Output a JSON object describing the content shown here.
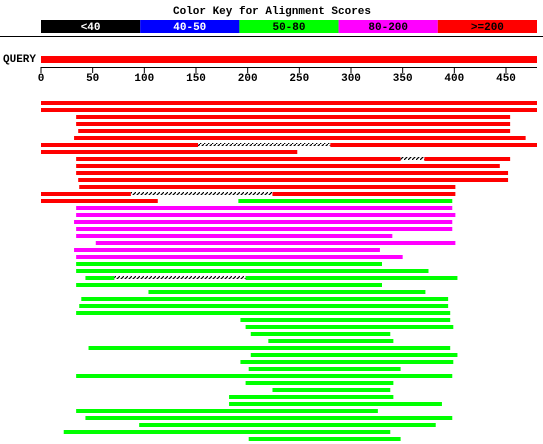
{
  "chart_data": {
    "type": "alignment",
    "title": "Color Key for Alignment Scores",
    "color_key": [
      {
        "label": "<40",
        "color": "#000000"
      },
      {
        "label": "40-50",
        "color": "#0000ff"
      },
      {
        "label": "50-80",
        "color": "#00ff00"
      },
      {
        "label": "80-200",
        "color": "#ff00ff"
      },
      {
        "label": ">=200",
        "color": "#ff0000"
      }
    ],
    "query": {
      "label": "QUERY",
      "start": 0,
      "end": 480,
      "key": 4
    },
    "xlim": [
      0,
      480
    ],
    "xticks": [
      0,
      50,
      100,
      150,
      200,
      250,
      300,
      350,
      400,
      450
    ],
    "hits": [
      [
        {
          "start": 0,
          "end": 480,
          "key": 4
        }
      ],
      [
        {
          "start": 0,
          "end": 480,
          "key": 4
        }
      ],
      [
        {
          "start": 34,
          "end": 454,
          "key": 4
        }
      ],
      [
        {
          "start": 34,
          "end": 454,
          "key": 4
        }
      ],
      [
        {
          "start": 36,
          "end": 454,
          "key": 4
        }
      ],
      [
        {
          "start": 32,
          "end": 469,
          "key": 4
        }
      ],
      [
        {
          "start": 0,
          "end": 152,
          "key": 4
        },
        {
          "start": 152,
          "end": 280,
          "key": null
        },
        {
          "start": 280,
          "end": 480,
          "key": 4
        }
      ],
      [
        {
          "start": 0,
          "end": 248,
          "key": 4
        }
      ],
      [
        {
          "start": 34,
          "end": 348,
          "key": 4
        },
        {
          "start": 348,
          "end": 371,
          "key": null
        },
        {
          "start": 371,
          "end": 454,
          "key": 4
        }
      ],
      [
        {
          "start": 34,
          "end": 444,
          "key": 4
        }
      ],
      [
        {
          "start": 34,
          "end": 452,
          "key": 4
        }
      ],
      [
        {
          "start": 36,
          "end": 452,
          "key": 4
        }
      ],
      [
        {
          "start": 37,
          "end": 401,
          "key": 4
        }
      ],
      [
        {
          "start": 0,
          "end": 87,
          "key": 4
        },
        {
          "start": 87,
          "end": 224,
          "key": null
        },
        {
          "start": 224,
          "end": 401,
          "key": 4
        }
      ],
      [
        {
          "start": 0,
          "end": 113,
          "key": 4
        },
        {
          "start": 191,
          "end": 398,
          "key": 2
        }
      ],
      [
        {
          "start": 34,
          "end": 398,
          "key": 3
        }
      ],
      [
        {
          "start": 34,
          "end": 401,
          "key": 3
        }
      ],
      [
        {
          "start": 32,
          "end": 398,
          "key": 3
        }
      ],
      [
        {
          "start": 34,
          "end": 398,
          "key": 3
        }
      ],
      [
        {
          "start": 34,
          "end": 340,
          "key": 3
        }
      ],
      [
        {
          "start": 53,
          "end": 401,
          "key": 3
        }
      ],
      [
        {
          "start": 32,
          "end": 328,
          "key": 3
        }
      ],
      [
        {
          "start": 34,
          "end": 350,
          "key": 3
        }
      ],
      [
        {
          "start": 34,
          "end": 330,
          "key": 2
        }
      ],
      [
        {
          "start": 34,
          "end": 375,
          "key": 2
        }
      ],
      [
        {
          "start": 43,
          "end": 71,
          "key": 2
        },
        {
          "start": 71,
          "end": 198,
          "key": null
        },
        {
          "start": 198,
          "end": 403,
          "key": 2
        }
      ],
      [
        {
          "start": 34,
          "end": 330,
          "key": 2
        }
      ],
      [
        {
          "start": 104,
          "end": 372,
          "key": 2
        }
      ],
      [
        {
          "start": 39,
          "end": 394,
          "key": 2
        }
      ],
      [
        {
          "start": 37,
          "end": 394,
          "key": 2
        }
      ],
      [
        {
          "start": 34,
          "end": 396,
          "key": 2
        }
      ],
      [
        {
          "start": 193,
          "end": 396,
          "key": 2
        }
      ],
      [
        {
          "start": 198,
          "end": 399,
          "key": 2
        }
      ],
      [
        {
          "start": 203,
          "end": 338,
          "key": 2
        }
      ],
      [
        {
          "start": 220,
          "end": 341,
          "key": 2
        }
      ],
      [
        {
          "start": 46,
          "end": 396,
          "key": 2
        }
      ],
      [
        {
          "start": 203,
          "end": 403,
          "key": 2
        }
      ],
      [
        {
          "start": 193,
          "end": 399,
          "key": 2
        }
      ],
      [
        {
          "start": 201,
          "end": 348,
          "key": 2
        }
      ],
      [
        {
          "start": 34,
          "end": 398,
          "key": 2
        }
      ],
      [
        {
          "start": 198,
          "end": 341,
          "key": 2
        }
      ],
      [
        {
          "start": 224,
          "end": 338,
          "key": 2
        }
      ],
      [
        {
          "start": 182,
          "end": 341,
          "key": 2
        }
      ],
      [
        {
          "start": 182,
          "end": 388,
          "key": 2
        }
      ],
      [
        {
          "start": 34,
          "end": 326,
          "key": 2
        }
      ],
      [
        {
          "start": 43,
          "end": 398,
          "key": 2
        }
      ],
      [
        {
          "start": 95,
          "end": 382,
          "key": 2
        }
      ],
      [
        {
          "start": 22,
          "end": 338,
          "key": 2
        }
      ],
      [
        {
          "start": 201,
          "end": 348,
          "key": 2
        }
      ]
    ]
  }
}
